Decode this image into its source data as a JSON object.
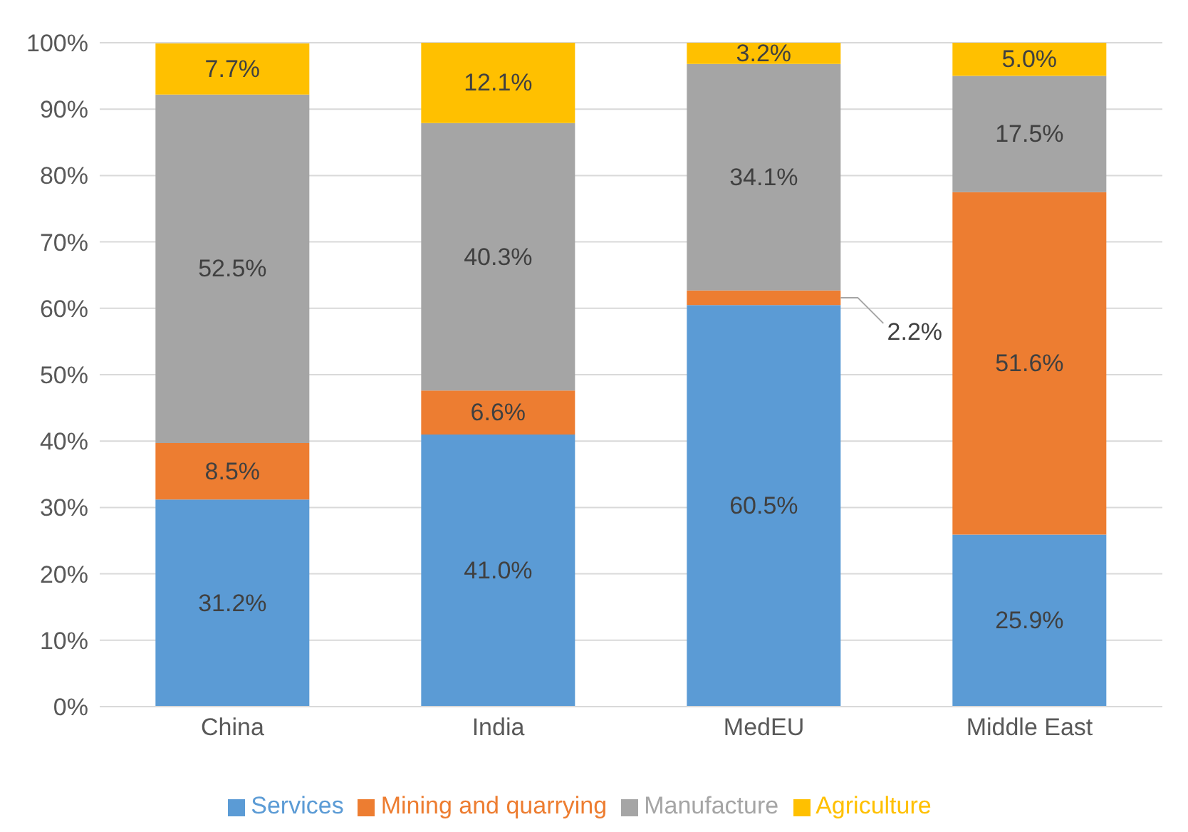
{
  "chart_data": {
    "type": "bar",
    "stacked": true,
    "categories": [
      "China",
      "India",
      "MedEU",
      "Middle East"
    ],
    "series": [
      {
        "name": "Services",
        "color": "#5b9bd5",
        "values": [
          31.2,
          41.0,
          60.5,
          25.9
        ],
        "value_labels": [
          "31.2%",
          "41.0%",
          "60.5%",
          "25.9%"
        ]
      },
      {
        "name": "Mining and quarrying",
        "color": "#ed7d31",
        "values": [
          8.5,
          6.6,
          2.2,
          51.6
        ],
        "value_labels": [
          "8.5%",
          "6.6%",
          "2.2%",
          "51.6%"
        ]
      },
      {
        "name": "Manufacture",
        "color": "#a5a5a5",
        "values": [
          52.5,
          40.3,
          34.1,
          17.5
        ],
        "value_labels": [
          "52.5%",
          "40.3%",
          "34.1%",
          "17.5%"
        ]
      },
      {
        "name": "Agriculture",
        "color": "#ffc000",
        "values": [
          7.7,
          12.1,
          3.2,
          5.0
        ],
        "value_labels": [
          "7.7%",
          "12.1%",
          "3.2%",
          "5.0%"
        ]
      }
    ],
    "ylim": [
      0,
      100
    ],
    "yticks": [
      {
        "value": 0,
        "label": "0%"
      },
      {
        "value": 10,
        "label": "10%"
      },
      {
        "value": 20,
        "label": "20%"
      },
      {
        "value": 30,
        "label": "30%"
      },
      {
        "value": 40,
        "label": "40%"
      },
      {
        "value": 50,
        "label": "50%"
      },
      {
        "value": 60,
        "label": "60%"
      },
      {
        "value": 70,
        "label": "70%"
      },
      {
        "value": 80,
        "label": "80%"
      },
      {
        "value": 90,
        "label": "90%"
      },
      {
        "value": 100,
        "label": "100%"
      }
    ],
    "grid": "y",
    "legend": "bottom"
  }
}
